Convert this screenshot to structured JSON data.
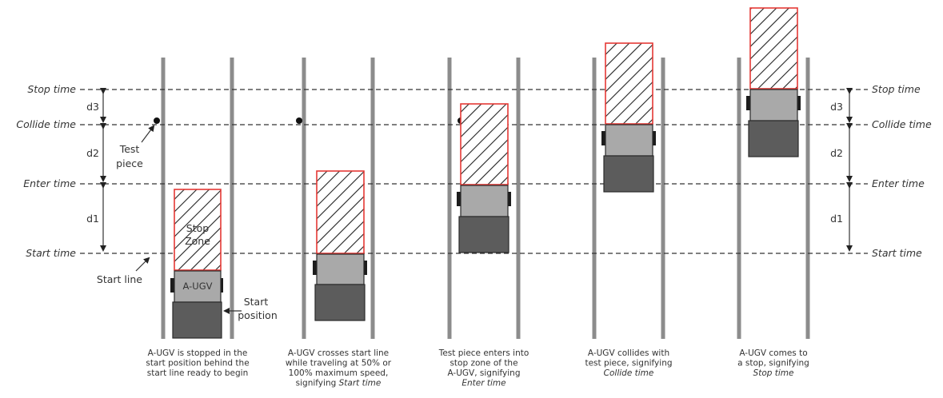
{
  "reference_lines": {
    "stop": "Stop time",
    "collide": "Collide time",
    "enter": "Enter time",
    "start": "Start time"
  },
  "dimensions": {
    "d1": "d1",
    "d2": "d2",
    "d3": "d3"
  },
  "annotations": {
    "test_piece": [
      "Test",
      "piece"
    ],
    "start_line": "Start line",
    "stop_zone": [
      "Stop",
      "Zone"
    ],
    "vehicle": "A-UGV",
    "start_position": [
      "Start",
      "position"
    ]
  },
  "captions": [
    [
      "A-UGV is stopped in the",
      "start position behind the",
      "start line ready to begin"
    ],
    [
      "A-UGV crosses start line",
      "while traveling at 50% or",
      "100% maximum speed,",
      "signifying |Start time|"
    ],
    [
      "Test piece enters into",
      "stop zone of the",
      "A-UGV, signifying",
      "|Enter time|"
    ],
    [
      "A-UGV collides with",
      "test piece, signifying",
      "|Collide time|"
    ],
    [
      "A-UGV comes to",
      "a stop, signifying",
      "|Stop time|"
    ]
  ],
  "colors": {
    "stop_zone_border": "#e53935",
    "lane": "#8c8c8c",
    "vehicle_body": "#a9a9a9",
    "vehicle_base": "#5c5c5c"
  }
}
